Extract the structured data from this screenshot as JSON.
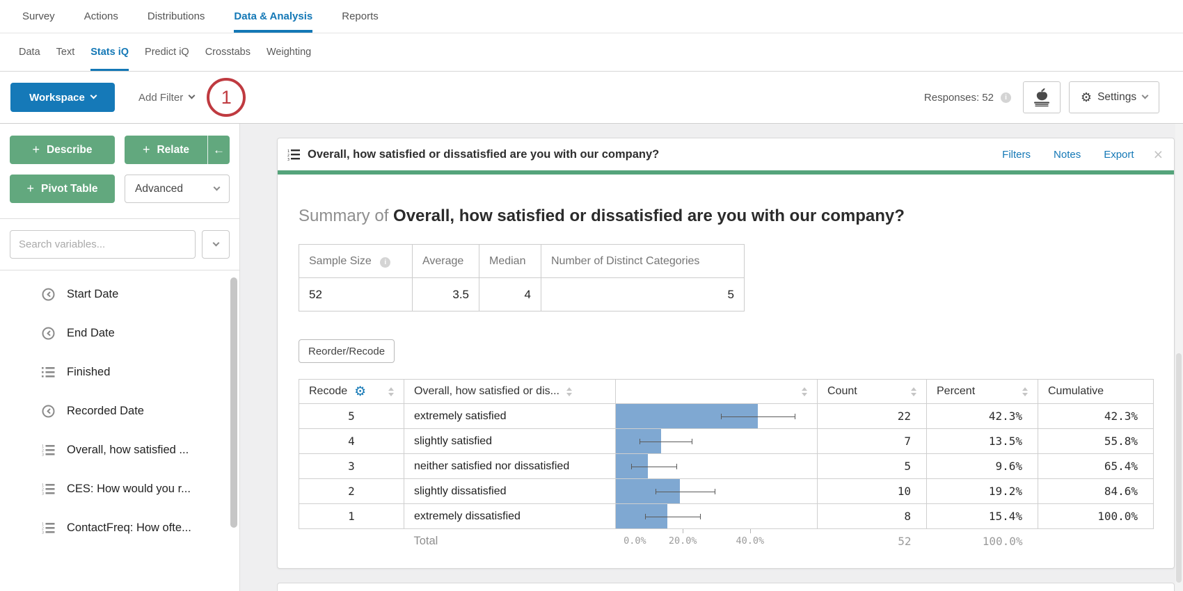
{
  "icons": {
    "plus": "+",
    "arrow_left": "←",
    "close": "×",
    "gear": "⚙",
    "info": "i"
  },
  "nav": {
    "tabs": [
      {
        "label": "Survey",
        "active": false
      },
      {
        "label": "Actions",
        "active": false
      },
      {
        "label": "Distributions",
        "active": false
      },
      {
        "label": "Data & Analysis",
        "active": true
      },
      {
        "label": "Reports",
        "active": false
      }
    ]
  },
  "subnav": {
    "tabs": [
      {
        "label": "Data",
        "active": false
      },
      {
        "label": "Text",
        "active": false
      },
      {
        "label": "Stats iQ",
        "active": true
      },
      {
        "label": "Predict iQ",
        "active": false
      },
      {
        "label": "Crosstabs",
        "active": false
      },
      {
        "label": "Weighting",
        "active": false
      }
    ]
  },
  "toolbar": {
    "workspace_label": "Workspace",
    "add_filter_label": "Add Filter",
    "annotation_number": "1",
    "responses_label": "Responses: 52",
    "settings_label": "Settings"
  },
  "sidebar": {
    "buttons": {
      "describe": "Describe",
      "relate": "Relate",
      "pivot_table": "Pivot Table",
      "advanced": "Advanced"
    },
    "search_placeholder": "Search variables...",
    "variables": [
      {
        "label": "Start Date",
        "icon": "clock"
      },
      {
        "label": "End Date",
        "icon": "clock"
      },
      {
        "label": "Finished",
        "icon": "list"
      },
      {
        "label": "Recorded Date",
        "icon": "clock"
      },
      {
        "label": "Overall, how satisfied ...",
        "icon": "ordered-list"
      },
      {
        "label": "CES: How would you r...",
        "icon": "ordered-list"
      },
      {
        "label": "ContactFreq: How ofte...",
        "icon": "ordered-list"
      }
    ]
  },
  "card": {
    "title": "Overall, how satisfied or dissatisfied are you with our company?",
    "links": {
      "filters": "Filters",
      "notes": "Notes",
      "export": "Export"
    },
    "summary_prefix": "Summary of ",
    "summary_title": "Overall, how satisfied or dissatisfied are you with our company?",
    "summary_table": {
      "headers": [
        "Sample Size",
        "Average",
        "Median",
        "Number of Distinct Categories"
      ],
      "sample_size": "52",
      "average": "3.5",
      "median": "4",
      "distinct_categories": "5"
    },
    "reorder_label": "Reorder/Recode",
    "table_headers": {
      "recode": "Recode",
      "variable": "Overall, how satisfied or dis...",
      "count": "Count",
      "percent": "Percent",
      "cumulative": "Cumulative"
    },
    "total_label": "Total",
    "total_count": "52",
    "total_percent": "100.0%"
  },
  "chart_data": {
    "type": "bar",
    "orientation": "horizontal",
    "title": "Overall, how satisfied or dissatisfied are you with our company?",
    "recodes": [
      "5",
      "4",
      "3",
      "2",
      "1"
    ],
    "categories": [
      "extremely satisfied",
      "slightly satisfied",
      "neither satisfied nor dissatisfied",
      "slightly dissatisfied",
      "extremely dissatisfied"
    ],
    "counts": [
      22,
      7,
      5,
      10,
      8
    ],
    "percents": [
      42.3,
      13.5,
      9.6,
      19.2,
      15.4
    ],
    "percent_labels": [
      "42.3%",
      "13.5%",
      "9.6%",
      "19.2%",
      "15.4%"
    ],
    "cumulative": [
      42.3,
      55.8,
      65.4,
      84.6,
      100.0
    ],
    "cumulative_labels": [
      "42.3%",
      "55.8%",
      "65.4%",
      "84.6%",
      "100.0%"
    ],
    "error_bars": [
      [
        31.3,
        53.5
      ],
      [
        7.1,
        22.9
      ],
      [
        4.6,
        18.3
      ],
      [
        11.9,
        29.6
      ],
      [
        8.8,
        25.4
      ]
    ],
    "x_ticks": [
      "0.0%",
      "20.0%",
      "40.0%"
    ],
    "x_tick_values": [
      0,
      20,
      40
    ],
    "xlim": [
      0,
      60
    ],
    "bar_color": "#7fa8d2",
    "sample_size": 52,
    "total_percent": 100.0,
    "summary": {
      "sample_size": 52,
      "average": 3.5,
      "median": 4,
      "distinct_categories": 5
    }
  }
}
